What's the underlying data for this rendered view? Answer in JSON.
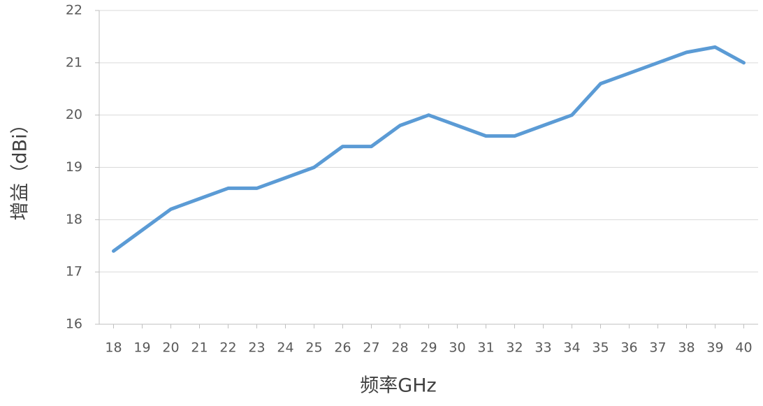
{
  "chart_data": {
    "type": "line",
    "xlabel": "频率GHz",
    "ylabel": "增益（dBi）",
    "x": [
      18,
      19,
      20,
      21,
      22,
      23,
      24,
      25,
      26,
      27,
      28,
      29,
      30,
      31,
      32,
      33,
      34,
      35,
      36,
      37,
      38,
      39,
      40
    ],
    "series": [
      {
        "name": "增益",
        "color": "#5b9bd5",
        "values": [
          17.4,
          17.8,
          18.2,
          18.4,
          18.6,
          18.6,
          18.8,
          19.0,
          19.4,
          19.4,
          19.8,
          20.0,
          19.8,
          19.6,
          19.6,
          19.8,
          20.0,
          20.6,
          20.8,
          21.0,
          21.2,
          21.3,
          21.0
        ]
      }
    ],
    "xlim": [
      17.5,
      40.5
    ],
    "xticks": [
      18,
      19,
      20,
      21,
      22,
      23,
      24,
      25,
      26,
      27,
      28,
      29,
      30,
      31,
      32,
      33,
      34,
      35,
      36,
      37,
      38,
      39,
      40
    ],
    "ylim": [
      16,
      22
    ],
    "yticks": [
      16,
      17,
      18,
      19,
      20,
      21,
      22
    ],
    "grid": true
  }
}
